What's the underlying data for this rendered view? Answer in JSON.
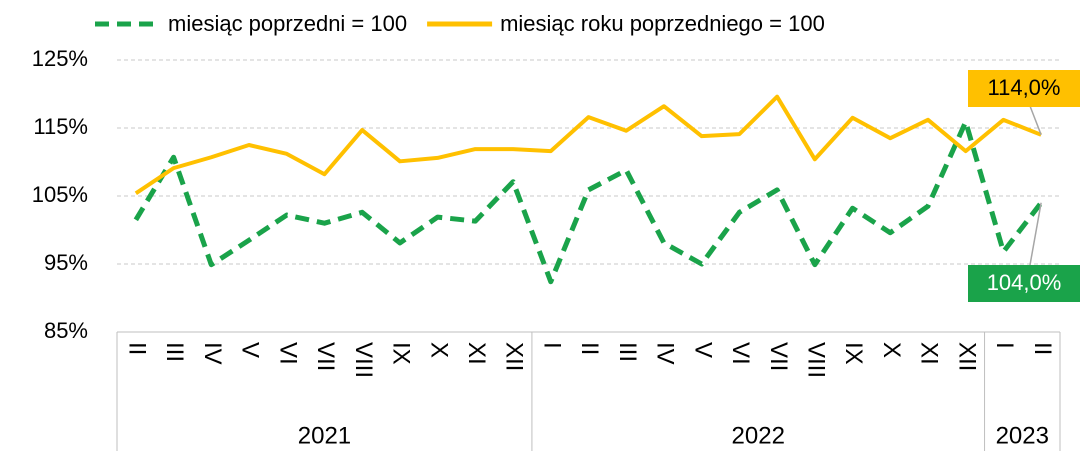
{
  "chart_data": {
    "type": "line",
    "groups": [
      {
        "name": "2021",
        "categories": [
          "II",
          "III",
          "IV",
          "V",
          "VI",
          "VII",
          "VIII",
          "IX",
          "X",
          "XI",
          "XII"
        ]
      },
      {
        "name": "2022",
        "categories": [
          "I",
          "II",
          "III",
          "IV",
          "V",
          "VI",
          "VII",
          "VIII",
          "IX",
          "X",
          "XI",
          "XII"
        ]
      },
      {
        "name": "2023",
        "categories": [
          "I",
          "II"
        ]
      }
    ],
    "series": [
      {
        "name": "miesiąc poprzedni = 100",
        "color": "#1aa34a",
        "dashed": true,
        "values": [
          101.5,
          110.7,
          94.9,
          98.5,
          102.2,
          101.0,
          102.6,
          98.1,
          101.9,
          101.3,
          107.1,
          92.4,
          105.9,
          108.8,
          98.1,
          95.0,
          102.6,
          105.9,
          94.9,
          103.2,
          99.6,
          103.5,
          115.9,
          96.8,
          104.0
        ],
        "value_labels": [
          null,
          null,
          null,
          null,
          null,
          null,
          null,
          null,
          null,
          null,
          null,
          null,
          null,
          null,
          null,
          null,
          null,
          null,
          null,
          null,
          null,
          null,
          null,
          null,
          "104,0%"
        ]
      },
      {
        "name": "miesiąc roku poprzedniego = 100",
        "color": "#ffc000",
        "dashed": false,
        "values": [
          105.4,
          109.1,
          110.7,
          112.5,
          111.2,
          108.2,
          114.7,
          110.1,
          110.6,
          111.9,
          111.9,
          111.6,
          116.6,
          114.6,
          118.2,
          113.8,
          114.1,
          119.6,
          110.4,
          116.5,
          113.5,
          116.2,
          111.6,
          116.2,
          114.0
        ],
        "value_labels": [
          null,
          null,
          null,
          null,
          null,
          null,
          null,
          null,
          null,
          null,
          null,
          null,
          null,
          null,
          null,
          null,
          null,
          null,
          null,
          null,
          null,
          null,
          null,
          null,
          "114,0%"
        ]
      }
    ],
    "ylim": [
      85,
      125
    ],
    "yticks": [
      {
        "value": 85,
        "label": "85%"
      },
      {
        "value": 95,
        "label": "95%"
      },
      {
        "value": 105,
        "label": "105%"
      },
      {
        "value": 115,
        "label": "115%"
      },
      {
        "value": 125,
        "label": "125%"
      }
    ],
    "grid": true,
    "legend": "top"
  }
}
